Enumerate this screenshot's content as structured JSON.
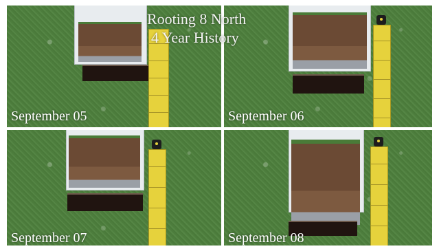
{
  "title": {
    "line1": "Rooting 8 North",
    "line2": "4 Year History"
  },
  "panels": [
    {
      "caption": "September 05"
    },
    {
      "caption": "September 06"
    },
    {
      "caption": "September 07"
    },
    {
      "caption": "September 08"
    }
  ],
  "colors": {
    "grass": "#4f7d3e",
    "soil": "#6b4a34",
    "tape": "#e6d23c",
    "sleeve": "#e8ecef"
  },
  "icons": [
    "measuring-tape-icon",
    "soil-core-sample"
  ]
}
